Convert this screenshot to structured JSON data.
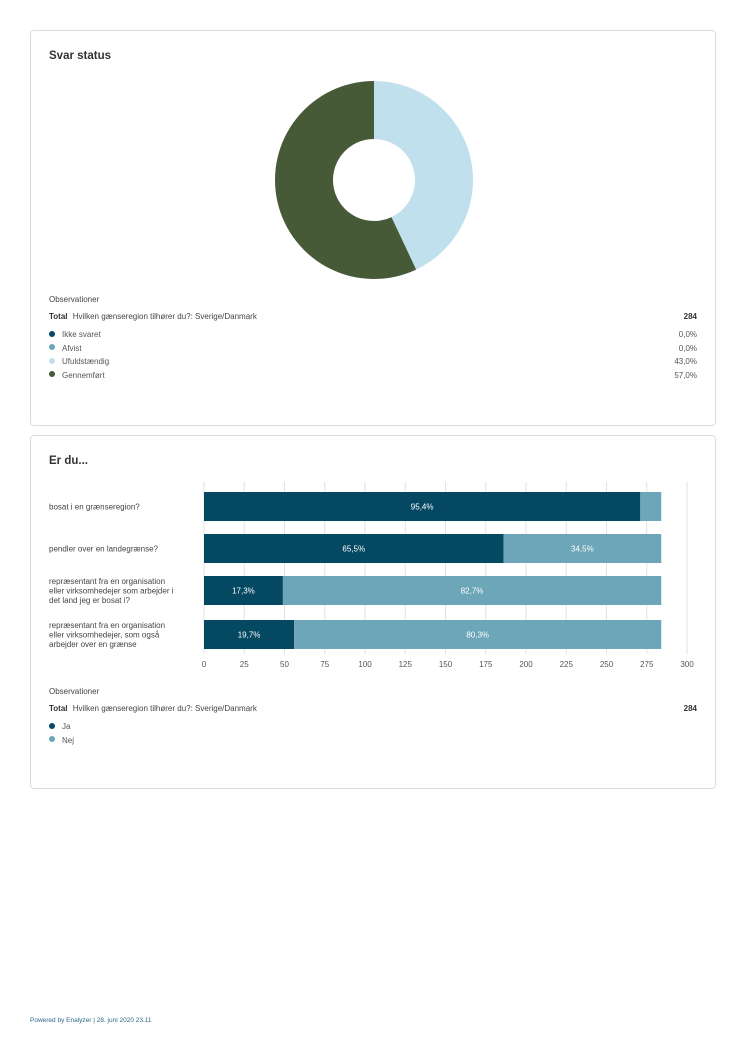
{
  "card1": {
    "title": "Svar status",
    "observations_label": "Observationer",
    "total_label": "Total",
    "total_question": "Hvilken gænseregion tilhører du?: Sverige/Danmark",
    "total_value": "284",
    "legend": [
      {
        "label": "Ikke svaret",
        "value": "0,0%",
        "color": "#044862"
      },
      {
        "label": "Afvist",
        "value": "0,0%",
        "color": "#6da6b8"
      },
      {
        "label": "Ufuldstændig",
        "value": "43,0%",
        "color": "#bfe0ec"
      },
      {
        "label": "Gennemført",
        "value": "57,0%",
        "color": "#475a37"
      }
    ]
  },
  "card2": {
    "title": "Er du...",
    "observations_label": "Observationer",
    "total_label": "Total",
    "total_question": "Hvilken gænseregion tilhører du?: Sverige/Danmark",
    "total_value": "284",
    "legend": [
      {
        "label": "Ja",
        "color": "#044862"
      },
      {
        "label": "Nej",
        "color": "#6da6b8"
      }
    ]
  },
  "footer": "Powered by Enalyzer | 28. juni 2020 23.11",
  "chart_data": [
    {
      "type": "pie",
      "variant": "donut",
      "title": "Svar status",
      "series": [
        {
          "name": "Ikke svaret",
          "value": 0.0,
          "label": "0,0%",
          "color": "#044862"
        },
        {
          "name": "Afvist",
          "value": 0.0,
          "label": "0,0%",
          "color": "#6da6b8"
        },
        {
          "name": "Ufuldstændig",
          "value": 43.0,
          "label": "43,0%",
          "color": "#bfe0ec"
        },
        {
          "name": "Gennemført",
          "value": 57.0,
          "label": "57,0%",
          "color": "#475a37"
        }
      ]
    },
    {
      "type": "bar",
      "orientation": "horizontal",
      "stacked": true,
      "title": "Er du...",
      "categories": [
        [
          "bosat i en grænseregion?"
        ],
        [
          "pendler over en landegrænse?"
        ],
        [
          "repræsentant fra en organisation",
          "eller virksomhedejer som arbejder i",
          "det land jeg er bosat i?"
        ],
        [
          "repræsentant fra en organisation",
          "eller virksomhedejer, som også",
          "arbejder over en grænse"
        ]
      ],
      "series": [
        {
          "name": "Ja",
          "color": "#044862",
          "values": [
            271,
            186,
            49,
            56
          ],
          "labels": [
            "95,4%",
            "65,5%",
            "17,3%",
            "19,7%"
          ]
        },
        {
          "name": "Nej",
          "color": "#6da6b8",
          "values": [
            13,
            98,
            235,
            228
          ],
          "labels": [
            "",
            "34,5%",
            "82,7%",
            "80,3%"
          ]
        }
      ],
      "xlim": [
        0,
        300
      ],
      "xticks": [
        "0",
        "25",
        "50",
        "75",
        "100",
        "125",
        "150",
        "175",
        "200",
        "225",
        "250",
        "275",
        "300"
      ],
      "grid": true,
      "legend": "bottom-left"
    }
  ]
}
